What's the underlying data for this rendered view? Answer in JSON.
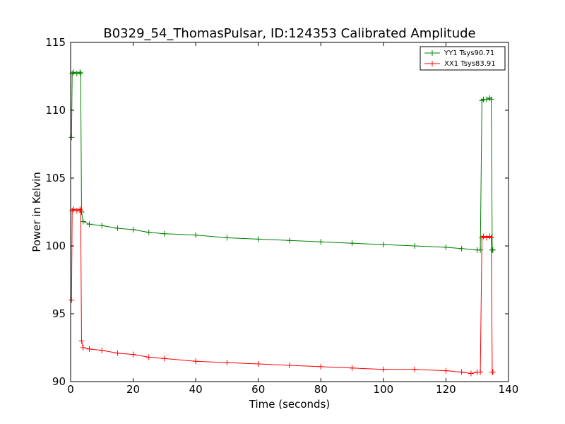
{
  "chart_data": {
    "type": "line",
    "title": "B0329_54_ThomasPulsar, ID:124353 Calibrated Amplitude",
    "xlabel": "Time (seconds)",
    "ylabel": "Power in Kelvin",
    "xlim": [
      0,
      140
    ],
    "ylim": [
      90,
      115
    ],
    "xticks": [
      "0",
      "20",
      "40",
      "60",
      "80",
      "100",
      "120",
      "140"
    ],
    "yticks": [
      "90",
      "95",
      "100",
      "105",
      "110",
      "115"
    ],
    "grid": false,
    "legend_position": "top-right",
    "marker": "+",
    "series": [
      {
        "name": "YY1 Tsys90.71",
        "color": "#008000",
        "x": [
          0.3,
          0.5,
          1,
          2,
          3,
          3.2,
          3.5,
          4,
          6,
          10,
          15,
          20,
          25,
          30,
          40,
          50,
          60,
          70,
          80,
          90,
          100,
          110,
          120,
          125,
          130,
          131,
          131.5,
          132,
          133,
          134,
          134.5,
          134.8,
          135
        ],
        "y": [
          108.0,
          112.7,
          112.8,
          112.7,
          112.8,
          112.7,
          102.5,
          101.8,
          101.6,
          101.5,
          101.3,
          101.2,
          101.0,
          100.9,
          100.8,
          100.6,
          100.5,
          100.4,
          100.3,
          100.2,
          100.1,
          100.0,
          99.9,
          99.8,
          99.7,
          99.7,
          110.7,
          110.8,
          110.8,
          110.9,
          110.8,
          99.7,
          99.7
        ]
      },
      {
        "name": "XX1 Tsys83.91",
        "color": "#ff0000",
        "x": [
          0.3,
          0.5,
          1,
          2,
          3,
          3.2,
          3.5,
          4,
          6,
          10,
          15,
          20,
          25,
          30,
          40,
          50,
          60,
          70,
          80,
          90,
          100,
          110,
          120,
          125,
          128,
          130,
          131,
          131.5,
          132,
          133,
          134,
          134.5,
          134.8,
          135
        ],
        "y": [
          96.0,
          102.6,
          102.7,
          102.6,
          102.7,
          102.6,
          93.0,
          92.5,
          92.4,
          92.3,
          92.1,
          92.0,
          91.8,
          91.7,
          91.5,
          91.4,
          91.3,
          91.2,
          91.1,
          91.0,
          90.9,
          90.9,
          90.8,
          90.7,
          90.6,
          90.7,
          90.7,
          100.6,
          100.7,
          100.6,
          100.7,
          100.6,
          90.7,
          90.7
        ]
      }
    ]
  }
}
